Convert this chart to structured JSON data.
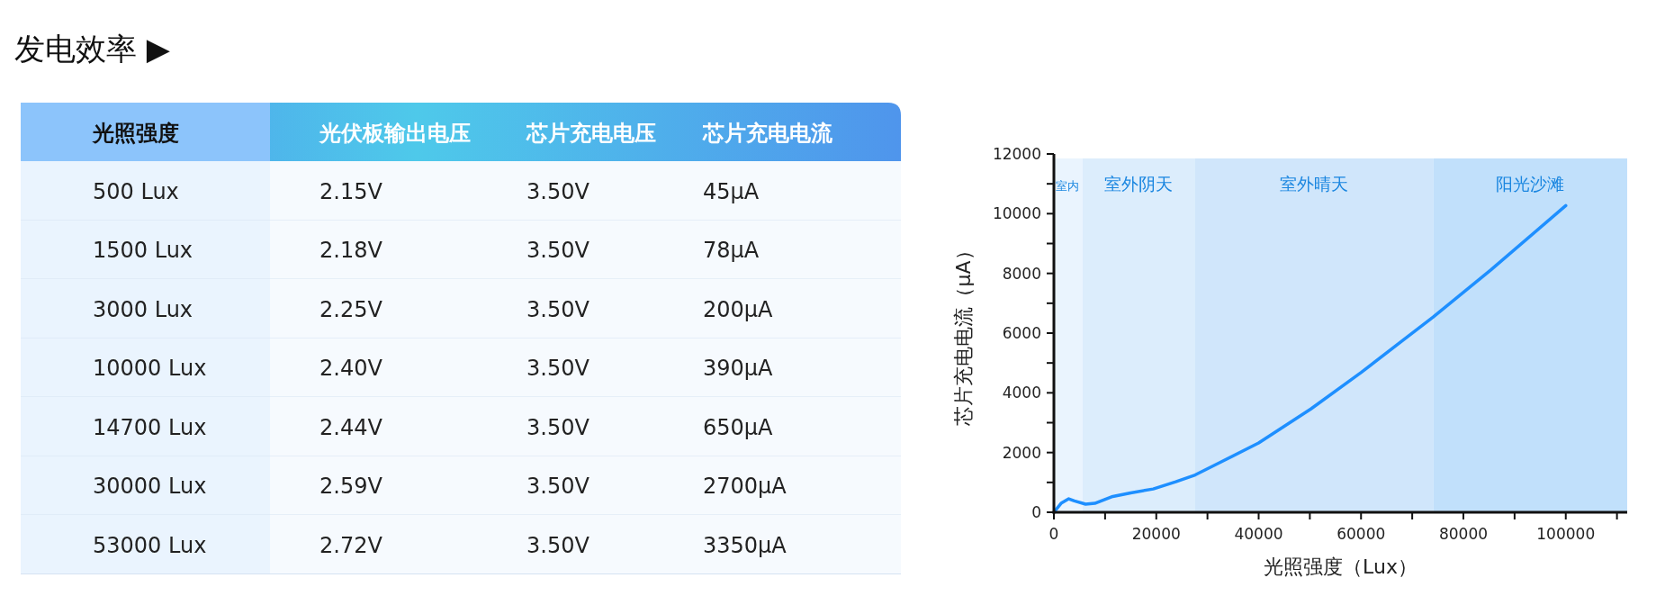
{
  "chart_data": [
    {
      "type": "other",
      "title": "发电效率 ▶",
      "categories": [
        "光照强度",
        "光伏板输出电压",
        "芯片充电电压",
        "芯片充电电流"
      ],
      "annotations": [
        "500 Lux",
        "2.15V",
        "3.50V",
        "45μA",
        "1500 Lux",
        "2.18V",
        "3.50V",
        "78μA",
        "3000 Lux",
        "2.25V",
        "3.50V",
        "200μA",
        "10000 Lux",
        "2.40V",
        "3.50V",
        "390μA",
        "14700 Lux",
        "2.44V",
        "3.50V",
        "650μA",
        "30000 Lux",
        "2.59V",
        "3.50V",
        "2700μA",
        "53000 Lux",
        "2.72V",
        "3.50V",
        "3350μA"
      ]
    },
    {
      "type": "line",
      "xlabel": "光照强度（Lux）",
      "ylabel": "芯片充电电流（μA）",
      "color": "#1e8fff",
      "x": [
        0,
        1400,
        2900,
        4000,
        6200,
        8000,
        11500,
        15000,
        19400,
        23800,
        27600,
        32600,
        40000,
        50200,
        60100,
        67800,
        74100,
        85400,
        100000
      ],
      "values": [
        0,
        300,
        450,
        380,
        270,
        300,
        530,
        650,
        780,
        1020,
        1250,
        1680,
        2320,
        3460,
        4690,
        5710,
        6540,
        8120,
        10270
      ],
      "xlim": [
        0,
        112000
      ],
      "xticks": [
        0,
        {
          "value": 10000,
          "label": null
        },
        20000,
        {
          "value": 30000,
          "label": null
        },
        40000,
        {
          "value": 50000,
          "label": null
        },
        60000,
        {
          "value": 70000,
          "label": null
        },
        80000,
        {
          "value": 90000,
          "label": null
        },
        100000,
        {
          "value": 110000,
          "label": null
        }
      ],
      "ylim": [
        0,
        12000
      ],
      "yticks": [
        0,
        {
          "value": 1000,
          "label": null
        },
        2000,
        {
          "value": 3000,
          "label": null
        },
        4000,
        {
          "value": 5000,
          "label": null
        },
        6000,
        {
          "value": 7000,
          "label": null
        },
        8000,
        {
          "value": 9000,
          "label": null
        },
        10000,
        {
          "value": 11000,
          "label": null
        },
        12000
      ],
      "bands": [
        {
          "axis": "x",
          "from": 0,
          "to": 5600,
          "label": "室内",
          "color": "#eaf4fe"
        },
        {
          "axis": "x",
          "from": 5600,
          "to": 27600,
          "label": "室外阴天",
          "color": "#dcedfc"
        },
        {
          "axis": "x",
          "from": 27600,
          "to": 74100,
          "label": "室外晴天",
          "color": "#d0e6fb"
        },
        {
          "axis": "x",
          "from": 74100,
          "to": 112000,
          "label": "阳光沙滩",
          "color": "#c1e0fb"
        }
      ],
      "grid": false
    }
  ]
}
